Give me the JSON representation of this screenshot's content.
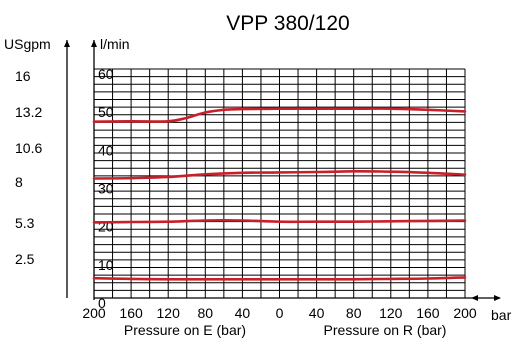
{
  "chart_data": {
    "type": "line",
    "title": "VPP 380/120",
    "y_left_unit": "USgpm",
    "y_left_ticks": [
      "16",
      "13.2",
      "10.6",
      "8",
      "5.3",
      "2.5"
    ],
    "y_right_unit": "l/min",
    "y_right_ticks": [
      "60",
      "50",
      "40",
      "30",
      "20",
      "10",
      "0"
    ],
    "ylim": [
      0,
      60
    ],
    "x_unit": "bar",
    "x_tick_labels": [
      "200",
      "160",
      "120",
      "80",
      "40",
      "0",
      "40",
      "80",
      "120",
      "160",
      "200"
    ],
    "x_ticks_signed": [
      -200,
      -160,
      -120,
      -80,
      -40,
      0,
      40,
      80,
      120,
      160,
      200
    ],
    "xlim": [
      -200,
      200
    ],
    "xlabel_left": "Pressure on E (bar)",
    "xlabel_right": "Pressure on R (bar)",
    "grid": true,
    "line_color": "#c8202a",
    "series": [
      {
        "x": [
          -200,
          -160,
          -120,
          -100,
          -80,
          -60,
          -40,
          0,
          40,
          80,
          120,
          160,
          200
        ],
        "values": [
          46.2,
          46.3,
          46.3,
          47.2,
          48.6,
          49.3,
          49.5,
          49.6,
          49.6,
          49.6,
          49.6,
          49.3,
          48.9
        ]
      },
      {
        "x": [
          -200,
          -160,
          -120,
          -80,
          -40,
          0,
          40,
          80,
          120,
          160,
          200
        ],
        "values": [
          31.3,
          31.4,
          31.7,
          32.4,
          32.8,
          32.9,
          33.0,
          33.2,
          33.1,
          32.8,
          32.3
        ]
      },
      {
        "x": [
          -200,
          -160,
          -120,
          -80,
          -40,
          0,
          40,
          80,
          120,
          160,
          200
        ],
        "values": [
          19.8,
          19.9,
          20.0,
          20.3,
          20.3,
          20.0,
          20.0,
          20.0,
          20.1,
          20.2,
          20.3
        ]
      },
      {
        "x": [
          -200,
          -160,
          -120,
          -80,
          -40,
          0,
          40,
          80,
          120,
          160,
          200
        ],
        "values": [
          5.2,
          5.0,
          4.9,
          4.9,
          4.9,
          4.9,
          4.9,
          4.9,
          5.0,
          5.1,
          5.4
        ]
      }
    ]
  }
}
